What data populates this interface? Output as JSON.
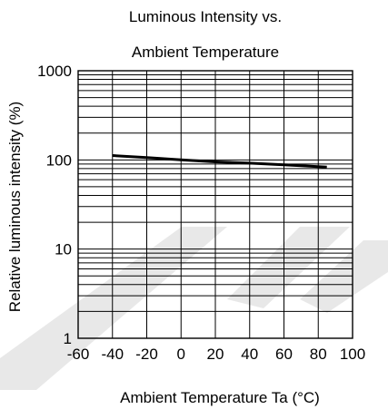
{
  "chart_data": {
    "type": "line",
    "title": [
      "Luminous Intensity vs.",
      "Ambient Temperature"
    ],
    "xlabel": "Ambient Temperature Ta (°C)",
    "ylabel": "Relative luminous intensity  (%)",
    "xlim": [
      -60,
      100
    ],
    "ylim": [
      1,
      1000
    ],
    "yscale": "log",
    "grid": true,
    "x_ticks": [
      -60,
      -40,
      -20,
      0,
      20,
      40,
      60,
      80,
      100
    ],
    "x_tick_labels": [
      "-60",
      "-40",
      "-20",
      "0",
      "20",
      "40",
      "60",
      "80",
      "100"
    ],
    "y_ticks": [
      1,
      10,
      100,
      1000
    ],
    "y_tick_labels": [
      "1",
      "10",
      "100",
      "1000"
    ],
    "series": [
      {
        "x": [
          -40,
          -20,
          0,
          20,
          40,
          60,
          85
        ],
        "y": [
          112,
          106,
          100,
          95,
          92,
          88,
          83
        ],
        "color": "#000000"
      }
    ]
  }
}
